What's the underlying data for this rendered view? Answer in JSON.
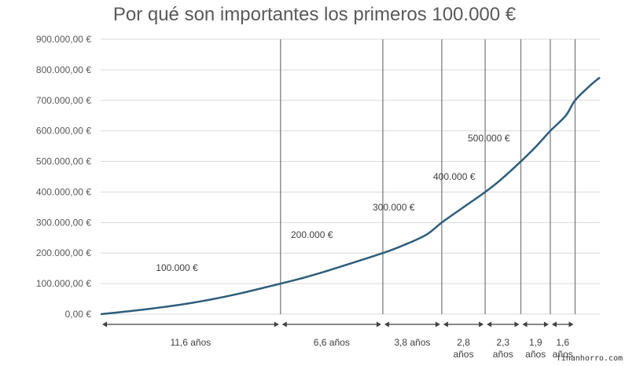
{
  "chart_data": {
    "type": "line",
    "title": "Por qué son importantes los primeros 100.000 €",
    "xlabel": "",
    "ylabel": "",
    "ylim": [
      0,
      900000
    ],
    "xlim": [
      0,
      32.2
    ],
    "y_ticks": [
      {
        "value": 0,
        "label": "0,00 €"
      },
      {
        "value": 100000,
        "label": "100.000,00 €"
      },
      {
        "value": 200000,
        "label": "200.000,00 €"
      },
      {
        "value": 300000,
        "label": "300.000,00 €"
      },
      {
        "value": 400000,
        "label": "400.000,00 €"
      },
      {
        "value": 500000,
        "label": "500.000,00 €"
      },
      {
        "value": 600000,
        "label": "600.000,00 €"
      },
      {
        "value": 700000,
        "label": "700.000,00 €"
      },
      {
        "value": 800000,
        "label": "800.000,00 €"
      },
      {
        "value": 900000,
        "label": "900.000,00 €"
      }
    ],
    "grid": true,
    "series": [
      {
        "color": "#2e5d7b",
        "points": [
          [
            0,
            0
          ],
          [
            1,
            5000
          ],
          [
            2,
            10500
          ],
          [
            3,
            16500
          ],
          [
            4,
            23000
          ],
          [
            5,
            30000
          ],
          [
            6,
            38000
          ],
          [
            7,
            47000
          ],
          [
            8,
            57000
          ],
          [
            9,
            68000
          ],
          [
            10,
            80000
          ],
          [
            11.6,
            100000
          ],
          [
            13,
            118000
          ],
          [
            14.5,
            140000
          ],
          [
            16,
            164000
          ],
          [
            18.2,
            200000
          ],
          [
            19.5,
            225000
          ],
          [
            21,
            260000
          ],
          [
            22,
            300000
          ],
          [
            23.4,
            350000
          ],
          [
            24.8,
            400000
          ],
          [
            25.8,
            440000
          ],
          [
            27.1,
            500000
          ],
          [
            28.1,
            550000
          ],
          [
            29.0,
            600000
          ],
          [
            30.0,
            650000
          ],
          [
            30.6,
            700000
          ],
          [
            31.6,
            750000
          ],
          [
            32.2,
            775000
          ]
        ]
      }
    ],
    "milestones": [
      {
        "x": 11.6,
        "label": "100.000 €"
      },
      {
        "x": 18.2,
        "label": "200.000 €"
      },
      {
        "x": 21.0,
        "label": "300.000 €"
      },
      {
        "x": 23.8,
        "label": "400.000 €"
      },
      {
        "x": 26.1,
        "label": "500.000 €"
      }
    ],
    "vertical_lines_x": [
      11.6,
      18.2,
      22.0,
      24.8,
      27.1,
      29.0,
      30.6
    ],
    "intervals": [
      {
        "from": 0,
        "to": 11.6,
        "label": "11,6 años"
      },
      {
        "from": 11.6,
        "to": 18.2,
        "label": "6,6 años"
      },
      {
        "from": 18.2,
        "to": 22.0,
        "label": "3,8 años"
      },
      {
        "from": 22.0,
        "to": 24.8,
        "label": "2,8 años"
      },
      {
        "from": 24.8,
        "to": 27.1,
        "label": "2,3 años"
      },
      {
        "from": 27.1,
        "to": 29.0,
        "label": "1,9 años"
      },
      {
        "from": 29.0,
        "to": 30.6,
        "label": "1,6 años"
      }
    ]
  },
  "watermark": "finanhorro.com"
}
